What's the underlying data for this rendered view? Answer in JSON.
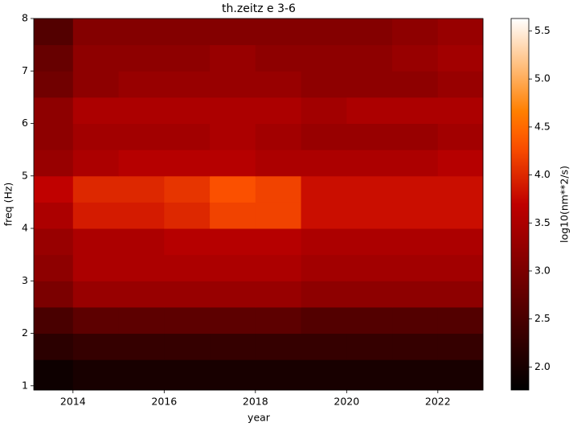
{
  "chart_data": {
    "type": "heatmap",
    "title": "th.zeitz e 3-6",
    "xlabel": "year",
    "ylabel": "freq (Hz)",
    "colorbar_label": "log10(nm**2/s)",
    "colormap": "gist_heat",
    "xlim": [
      2013.14,
      2022.99
    ],
    "xticks": [
      2014,
      2016,
      2018,
      2020,
      2022
    ],
    "ylim": [
      0.92,
      8
    ],
    "yticks": [
      1,
      2,
      3,
      4,
      5,
      6,
      7,
      8
    ],
    "zlim": [
      1.76,
      5.63
    ],
    "zticks": [
      {
        "value": 2.0,
        "label": "2.0"
      },
      {
        "value": 2.5,
        "label": "2.5"
      },
      {
        "value": 3.0,
        "label": "3.0"
      },
      {
        "value": 3.5,
        "label": "3.5"
      },
      {
        "value": 4.0,
        "label": "4.0"
      },
      {
        "value": 4.5,
        "label": "4.5"
      },
      {
        "value": 5.0,
        "label": "5.0"
      },
      {
        "value": 5.5,
        "label": "5.5"
      }
    ],
    "xbins": [
      2013.14,
      2014,
      2015,
      2016,
      2017,
      2018,
      2019,
      2020,
      2021,
      2022,
      2022.99
    ],
    "ybins": [
      0.92,
      1.5,
      2,
      2.5,
      3,
      3.5,
      4,
      4.5,
      5,
      5.5,
      6,
      6.5,
      7,
      7.5,
      8
    ],
    "z": [
      [
        1.9,
        2.0,
        2.0,
        2.0,
        2.0,
        2.0,
        2.0,
        2.0,
        2.0,
        2.0
      ],
      [
        2.2,
        2.3,
        2.3,
        2.3,
        2.3,
        2.3,
        2.3,
        2.3,
        2.3,
        2.3
      ],
      [
        2.5,
        2.7,
        2.7,
        2.7,
        2.7,
        2.7,
        2.6,
        2.6,
        2.6,
        2.6
      ],
      [
        3.0,
        3.3,
        3.3,
        3.3,
        3.3,
        3.3,
        3.2,
        3.2,
        3.2,
        3.2
      ],
      [
        3.2,
        3.5,
        3.5,
        3.5,
        3.5,
        3.5,
        3.4,
        3.4,
        3.4,
        3.4
      ],
      [
        3.3,
        3.5,
        3.5,
        3.6,
        3.6,
        3.6,
        3.5,
        3.5,
        3.5,
        3.5
      ],
      [
        3.5,
        3.9,
        3.9,
        4.0,
        4.2,
        4.2,
        3.8,
        3.8,
        3.8,
        3.8
      ],
      [
        3.7,
        4.0,
        4.0,
        4.1,
        4.3,
        4.2,
        3.8,
        3.8,
        3.8,
        3.8
      ],
      [
        3.3,
        3.5,
        3.6,
        3.6,
        3.6,
        3.5,
        3.5,
        3.5,
        3.5,
        3.6
      ],
      [
        3.2,
        3.4,
        3.4,
        3.4,
        3.5,
        3.4,
        3.3,
        3.3,
        3.3,
        3.4
      ],
      [
        3.2,
        3.5,
        3.5,
        3.5,
        3.5,
        3.5,
        3.4,
        3.5,
        3.5,
        3.5
      ],
      [
        2.9,
        3.2,
        3.3,
        3.3,
        3.3,
        3.3,
        3.2,
        3.2,
        3.2,
        3.3
      ],
      [
        2.8,
        3.2,
        3.2,
        3.2,
        3.3,
        3.2,
        3.2,
        3.2,
        3.3,
        3.4
      ],
      [
        2.6,
        3.1,
        3.1,
        3.1,
        3.1,
        3.1,
        3.1,
        3.1,
        3.2,
        3.3
      ]
    ]
  }
}
